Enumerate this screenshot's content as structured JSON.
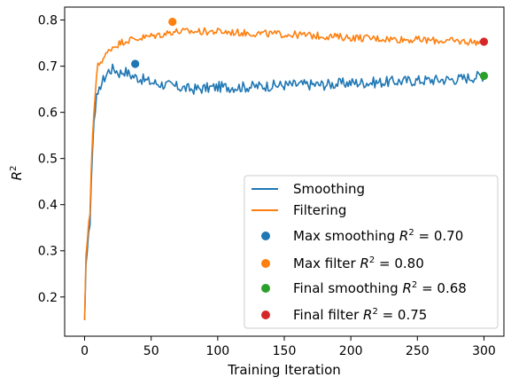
{
  "chart_data": {
    "type": "line",
    "title": "",
    "xlabel": "Training Iteration",
    "ylabel_base": "R",
    "ylabel_sup": "2",
    "xlim": [
      -15,
      315
    ],
    "ylim": [
      0.115,
      0.828
    ],
    "xticks": [
      0,
      50,
      100,
      150,
      200,
      250,
      300
    ],
    "yticks": [
      0.2,
      0.3,
      0.4,
      0.5,
      0.6,
      0.7,
      0.8
    ],
    "grid": false,
    "legend_position": "lower-right",
    "colors": {
      "smoothing": "#1f77b4",
      "filtering": "#ff7f0e",
      "final_smoothing": "#2ca02c",
      "final_filter": "#d62728"
    },
    "series": [
      {
        "name": "Smoothing",
        "color": "#1f77b4",
        "keypoints": [
          [
            0,
            0.15
          ],
          [
            1,
            0.27
          ],
          [
            2,
            0.3
          ],
          [
            3,
            0.34
          ],
          [
            4,
            0.355
          ],
          [
            5,
            0.45
          ],
          [
            6,
            0.52
          ],
          [
            7,
            0.58
          ],
          [
            8,
            0.6
          ],
          [
            9,
            0.64
          ],
          [
            10,
            0.63
          ],
          [
            12,
            0.66
          ],
          [
            15,
            0.675
          ],
          [
            18,
            0.69
          ],
          [
            22,
            0.695
          ],
          [
            26,
            0.685
          ],
          [
            30,
            0.69
          ],
          [
            35,
            0.68
          ],
          [
            40,
            0.675
          ],
          [
            50,
            0.665
          ],
          [
            60,
            0.66
          ],
          [
            70,
            0.655
          ],
          [
            80,
            0.65
          ],
          [
            90,
            0.652
          ],
          [
            100,
            0.655
          ],
          [
            120,
            0.655
          ],
          [
            140,
            0.658
          ],
          [
            160,
            0.66
          ],
          [
            180,
            0.66
          ],
          [
            200,
            0.664
          ],
          [
            220,
            0.665
          ],
          [
            240,
            0.668
          ],
          [
            260,
            0.67
          ],
          [
            280,
            0.672
          ],
          [
            300,
            0.68
          ]
        ],
        "noise": 0.012
      },
      {
        "name": "Filtering",
        "color": "#ff7f0e",
        "keypoints": [
          [
            0,
            0.15
          ],
          [
            1,
            0.29
          ],
          [
            2,
            0.32
          ],
          [
            3,
            0.36
          ],
          [
            4,
            0.38
          ],
          [
            5,
            0.48
          ],
          [
            6,
            0.55
          ],
          [
            7,
            0.6
          ],
          [
            8,
            0.64
          ],
          [
            9,
            0.68
          ],
          [
            10,
            0.7
          ],
          [
            12,
            0.71
          ],
          [
            15,
            0.72
          ],
          [
            20,
            0.74
          ],
          [
            30,
            0.755
          ],
          [
            40,
            0.76
          ],
          [
            50,
            0.765
          ],
          [
            60,
            0.77
          ],
          [
            66,
            0.775
          ],
          [
            70,
            0.775
          ],
          [
            80,
            0.775
          ],
          [
            100,
            0.775
          ],
          [
            120,
            0.772
          ],
          [
            140,
            0.77
          ],
          [
            160,
            0.768
          ],
          [
            180,
            0.765
          ],
          [
            200,
            0.762
          ],
          [
            220,
            0.76
          ],
          [
            240,
            0.758
          ],
          [
            260,
            0.756
          ],
          [
            280,
            0.754
          ],
          [
            300,
            0.752
          ]
        ],
        "noise": 0.008
      }
    ],
    "markers": [
      {
        "name": "Max smoothing",
        "x": 38,
        "y": 0.705,
        "color": "#1f77b4"
      },
      {
        "name": "Max filter",
        "x": 66,
        "y": 0.796,
        "color": "#ff7f0e"
      },
      {
        "name": "Final smoothing",
        "x": 300,
        "y": 0.679,
        "color": "#2ca02c"
      },
      {
        "name": "Final filter",
        "x": 300,
        "y": 0.753,
        "color": "#d62728"
      }
    ],
    "legend": {
      "line_entries": [
        {
          "label": "Smoothing",
          "color": "#1f77b4"
        },
        {
          "label": "Filtering",
          "color": "#ff7f0e"
        }
      ],
      "marker_entries": [
        {
          "prefix": "Max smoothing ",
          "base": "R",
          "sup": "2",
          "suffix": " = 0.70",
          "color": "#1f77b4"
        },
        {
          "prefix": "Max filter ",
          "base": "R",
          "sup": "2",
          "suffix": " = 0.80",
          "color": "#ff7f0e"
        },
        {
          "prefix": "Final smoothing ",
          "base": "R",
          "sup": "2",
          "suffix": " = 0.68",
          "color": "#2ca02c"
        },
        {
          "prefix": "Final filter ",
          "base": "R",
          "sup": "2",
          "suffix": " = 0.75",
          "color": "#d62728"
        }
      ]
    }
  }
}
